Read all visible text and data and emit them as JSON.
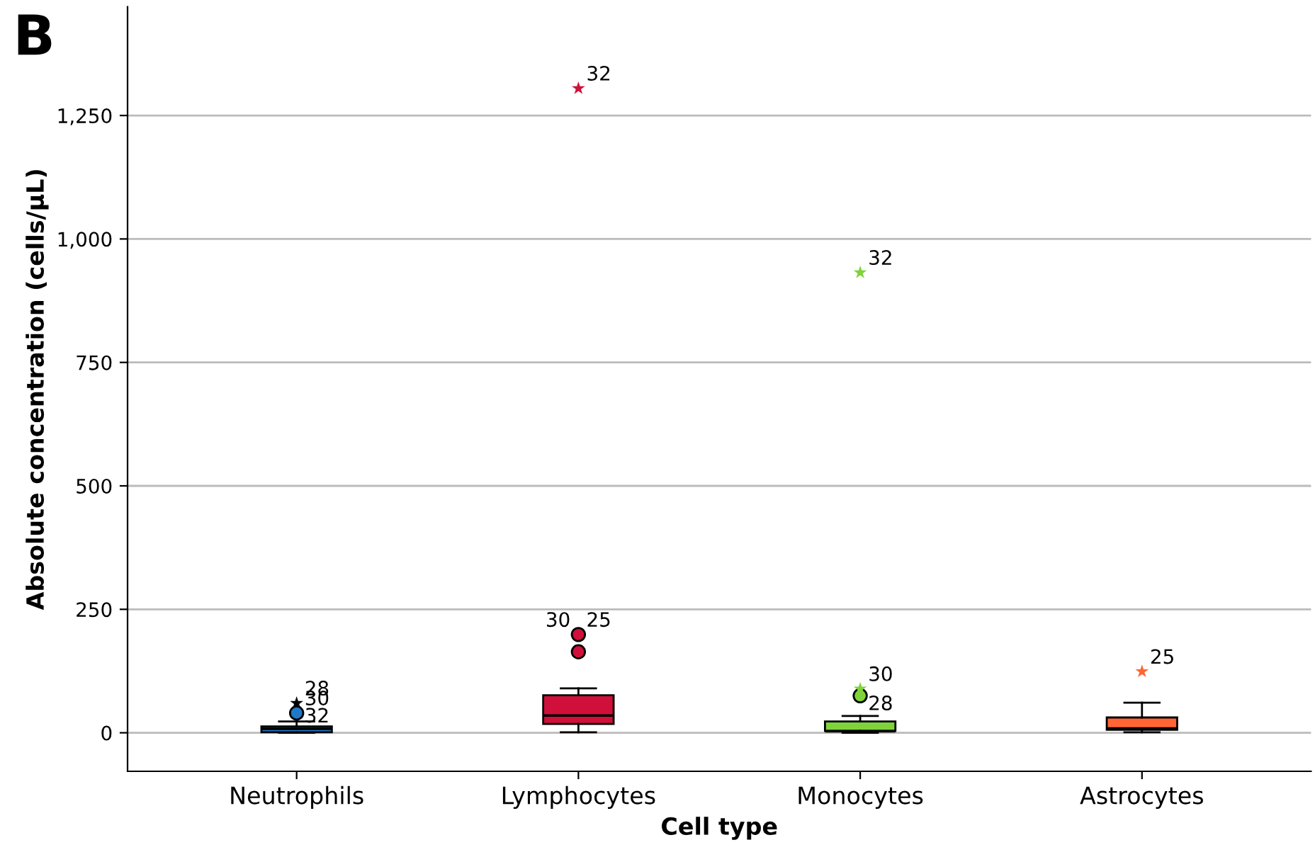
{
  "chart_data": {
    "type": "box",
    "title": "B",
    "xlabel": "Cell type",
    "ylabel": "Absolute concentration (cells/µL)",
    "categories": [
      "Neutrophils",
      "Lymphocytes",
      "Monocytes",
      "Astrocytes"
    ],
    "colors": [
      "#1f78c8",
      "#d0103a",
      "#7ed33a",
      "#ff6633"
    ],
    "boxes": [
      {
        "low": 0,
        "q1": 1,
        "median": 8,
        "q3": 13,
        "high": 23
      },
      {
        "low": 1,
        "q1": 18,
        "median": 35,
        "q3": 76,
        "high": 90
      },
      {
        "low": 0,
        "q1": 4,
        "median": 3,
        "q3": 23,
        "high": 34
      },
      {
        "low": 1,
        "q1": 6,
        "median": 9,
        "q3": 31,
        "high": 61
      }
    ],
    "series": [
      {
        "type": "scatter",
        "marker": "circle",
        "x": [
          "Neutrophils",
          "Lymphocytes",
          "Lymphocytes",
          "Monocytes"
        ],
        "values": [
          40,
          199,
          164,
          75
        ],
        "colors": [
          "#1f78c8",
          "#d0103a",
          "#d0103a",
          "#7ed33a"
        ]
      },
      {
        "type": "scatter",
        "marker": "star",
        "x": [
          "Neutrophils",
          "Lymphocytes",
          "Monocytes",
          "Monocytes",
          "Astrocytes"
        ],
        "values": [
          60,
          1305,
          932,
          89,
          124
        ],
        "colors": [
          "#000000",
          "#d0103a",
          "#7ed33a",
          "#7ed33a",
          "#ff6633"
        ]
      }
    ],
    "annotations": [
      {
        "text": "28",
        "x": "Neutrophils",
        "y": 60
      },
      {
        "text": "30",
        "x": "Neutrophils",
        "y": 40
      },
      {
        "text": "32",
        "x": "Neutrophils",
        "y": 5
      },
      {
        "text": "32",
        "x": "Lymphocytes",
        "y": 1305
      },
      {
        "text": "30",
        "x": "Lymphocytes",
        "y": 199
      },
      {
        "text": "25",
        "x": "Lymphocytes",
        "y": 199
      },
      {
        "text": "32",
        "x": "Monocytes",
        "y": 932
      },
      {
        "text": "30",
        "x": "Monocytes",
        "y": 89
      },
      {
        "text": "28",
        "x": "Monocytes",
        "y": 30
      },
      {
        "text": "25",
        "x": "Astrocytes",
        "y": 124
      }
    ],
    "ylim": [
      -78,
      1470
    ],
    "yticks": [
      0,
      {
        "value": 250,
        "label": "250"
      },
      {
        "value": 500,
        "label": "500"
      },
      {
        "value": 750,
        "label": "750"
      },
      {
        "value": 1000,
        "label": "1,000"
      },
      {
        "value": 1250,
        "label": "1,250"
      }
    ],
    "grid": "y"
  }
}
